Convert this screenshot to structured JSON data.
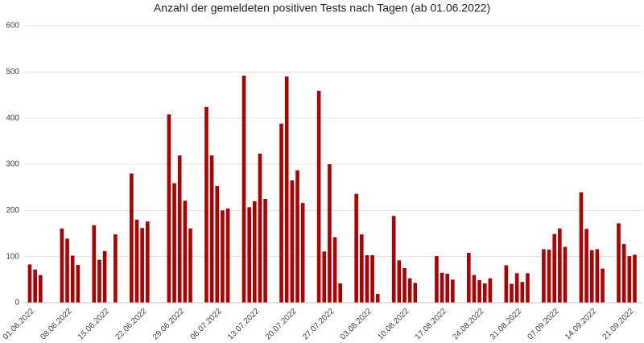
{
  "chart_data": {
    "type": "bar",
    "title": "Anzahl der gemeldeten positiven Tests nach Tagen (ab 01.06.2022)",
    "color": "#b00000",
    "grid": true,
    "ylim": [
      0,
      600
    ],
    "yticks": [
      0,
      100,
      200,
      300,
      400,
      500,
      600
    ],
    "categories": [
      "01.06.2022",
      null,
      null,
      null,
      null,
      null,
      null,
      "08.06.2022",
      null,
      null,
      null,
      null,
      null,
      null,
      "15.06.2022",
      null,
      null,
      null,
      null,
      null,
      null,
      "22.06.2022",
      null,
      null,
      null,
      null,
      null,
      null,
      "29.06.2022",
      null,
      null,
      null,
      null,
      null,
      null,
      "06.07.2022",
      null,
      null,
      null,
      null,
      null,
      null,
      "13.07.2022",
      null,
      null,
      null,
      null,
      null,
      null,
      "20.07.2022",
      null,
      null,
      null,
      null,
      null,
      null,
      "27.07.2022",
      null,
      null,
      null,
      null,
      null,
      null,
      "03.08.2022",
      null,
      null,
      null,
      null,
      null,
      null,
      "10.08.2022",
      null,
      null,
      null,
      null,
      null,
      null,
      "17.08.2022",
      null,
      null,
      null,
      null,
      null,
      null,
      "24.08.2022",
      null,
      null,
      null,
      null,
      null,
      null,
      "31.08.2022",
      null,
      null,
      null,
      null,
      null,
      null,
      "07.09.2022",
      null,
      null,
      null,
      null,
      null,
      null,
      "14.09.2022",
      null,
      null,
      null,
      null,
      null,
      null,
      "21.09.2022",
      null
    ],
    "values": [
      83,
      72,
      60,
      null,
      null,
      null,
      161,
      139,
      102,
      82,
      null,
      null,
      168,
      93,
      112,
      null,
      148,
      null,
      null,
      280,
      180,
      162,
      176,
      null,
      null,
      null,
      408,
      259,
      319,
      221,
      161,
      null,
      null,
      424,
      319,
      253,
      200,
      204,
      null,
      null,
      492,
      207,
      220,
      323,
      225,
      null,
      null,
      388,
      490,
      265,
      287,
      216,
      null,
      null,
      459,
      111,
      300,
      142,
      42,
      null,
      null,
      236,
      148,
      103,
      103,
      19,
      null,
      null,
      188,
      92,
      75,
      53,
      43,
      null,
      null,
      null,
      101,
      65,
      63,
      50,
      null,
      null,
      108,
      60,
      49,
      42,
      53,
      null,
      null,
      81,
      41,
      64,
      45,
      64,
      null,
      null,
      116,
      115,
      149,
      161,
      121,
      null,
      null,
      239,
      160,
      114,
      116,
      74,
      null,
      null,
      172,
      127,
      101,
      104
    ]
  }
}
